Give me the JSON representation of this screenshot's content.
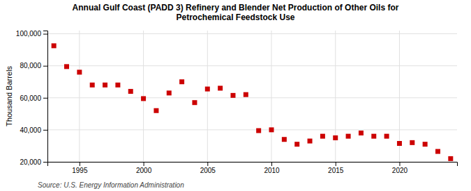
{
  "chart_data": {
    "type": "scatter",
    "title": "Annual Gulf Coast (PADD 3) Refinery and Blender Net Production of Other Oils for\nPetrochemical Feedstock Use",
    "y_label": "Thousand Barrels",
    "source": "Source: U.S. Energy Information Administration",
    "x": [
      1993,
      1994,
      1995,
      1996,
      1997,
      1998,
      1999,
      2000,
      2001,
      2002,
      2003,
      2004,
      2005,
      2006,
      2007,
      2008,
      2009,
      2010,
      2011,
      2012,
      2013,
      2014,
      2015,
      2016,
      2017,
      2018,
      2019,
      2020,
      2021,
      2022,
      2023,
      2024
    ],
    "values": [
      92500,
      79500,
      76000,
      68000,
      68000,
      68000,
      64000,
      59500,
      52000,
      63000,
      70000,
      57000,
      65500,
      66000,
      61500,
      62000,
      39500,
      40000,
      34000,
      31000,
      33000,
      36000,
      35000,
      36000,
      38000,
      36000,
      36000,
      31500,
      32000,
      31000,
      26500,
      22000
    ],
    "color": "#cc0000",
    "marker": "square",
    "xlim": [
      1992.5,
      2024.5
    ],
    "ylim": [
      20000,
      102000
    ],
    "xticks": [
      1995,
      2000,
      2005,
      2010,
      2015,
      2020
    ],
    "yticks": [
      {
        "value": 20000,
        "label": "20,000"
      },
      {
        "value": 40000,
        "label": "40,000"
      },
      {
        "value": 60000,
        "label": "60,000"
      },
      {
        "value": 80000,
        "label": "80,000"
      },
      {
        "value": 100000,
        "label": "100,000"
      }
    ],
    "grid": true
  }
}
